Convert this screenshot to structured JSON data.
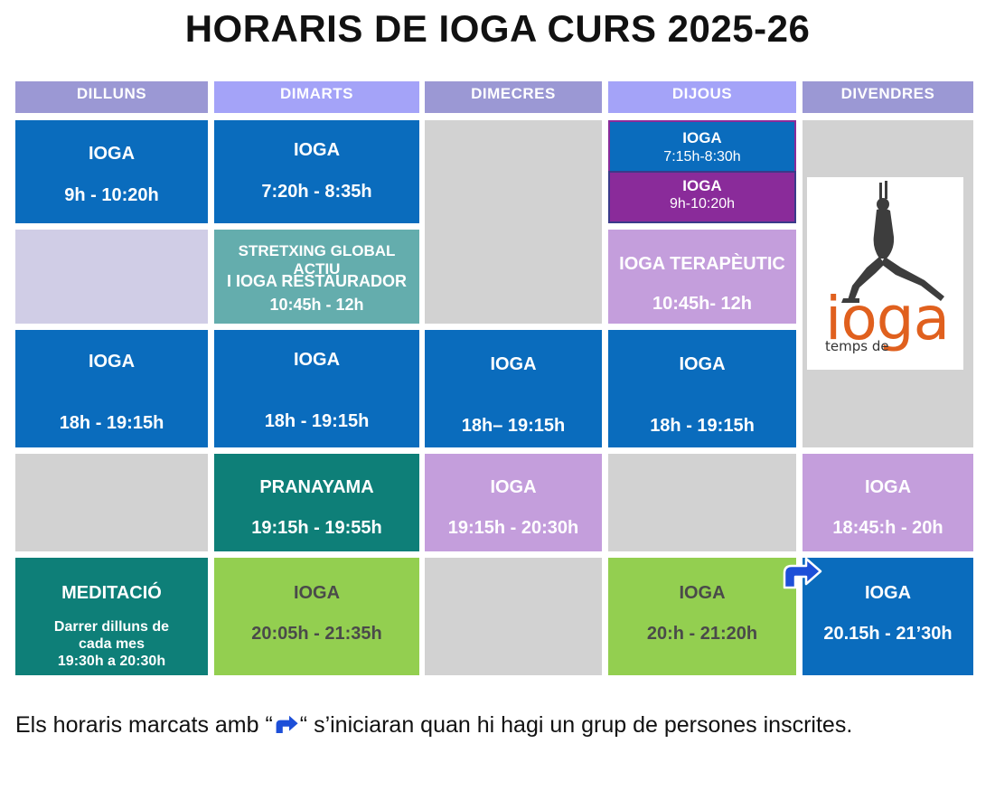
{
  "title": "HORARIS DE IOGA CURS 2025-26",
  "days": [
    "DILLUNS",
    "DIMARTS",
    "DIMECRES",
    "DIJOUS",
    "DIVENDRES"
  ],
  "rows": {
    "r1": {
      "mon": {
        "name": "IOGA",
        "time": "9h - 10:20h"
      },
      "tue": {
        "name": "IOGA",
        "time": "7:20h - 8:35h"
      },
      "thu_a": {
        "name": "IOGA",
        "time": "7:15h-8:30h"
      },
      "thu_b": {
        "name": "IOGA",
        "time": "9h-10:20h"
      }
    },
    "r2": {
      "tue": {
        "line1": "STRETXING GLOBAL ACTIU",
        "line2": "I IOGA RESTAURADOR",
        "time": "10:45h - 12h"
      },
      "thu": {
        "name": "IOGA TERAPÈUTIC",
        "time": "10:45h- 12h"
      }
    },
    "r3": {
      "mon": {
        "name": "IOGA",
        "time": "18h - 19:15h"
      },
      "tue": {
        "name": "IOGA",
        "time": "18h - 19:15h"
      },
      "wed": {
        "name": "IOGA",
        "time": "18h– 19:15h"
      },
      "thu": {
        "name": "IOGA",
        "time": "18h - 19:15h"
      }
    },
    "r4": {
      "tue": {
        "name": "PRANAYAMA",
        "time": "19:15h -  19:55h"
      },
      "wed": {
        "name": "IOGA",
        "time": "19:15h - 20:30h"
      },
      "fri": {
        "name": "IOGA",
        "time": "18:45:h - 20h"
      }
    },
    "r5": {
      "mon": {
        "name": "MEDITACIÓ",
        "line1": "Darrer dilluns de",
        "line2": "cada mes",
        "line3": "19:30h a 20:30h"
      },
      "tue": {
        "name": "IOGA",
        "time": "20:05h - 21:35h"
      },
      "thu": {
        "name": "IOGA",
        "time": "20:h - 21:20h"
      },
      "fri": {
        "name": "IOGA",
        "time": "20.15h - 21’30h"
      }
    }
  },
  "logo": {
    "word": "ioga",
    "sub": "temps de"
  },
  "note": {
    "before": "Els horaris marcats amb “",
    "after": "“ s’iniciaran quan hi hagi un grup de persones inscrites."
  },
  "colors": {
    "header_light": "#9b98d4",
    "header_dark": "#a4a3f8",
    "blue": "#0a6cbd",
    "teal_dark": "#0e7f78",
    "lilac": "#c49edc",
    "green": "#93cf50",
    "purple": "#8a2b9a",
    "arrow": "#1d4fd8"
  },
  "icons": [
    "yogi-pose-icon",
    "turn-right-arrow-icon"
  ]
}
